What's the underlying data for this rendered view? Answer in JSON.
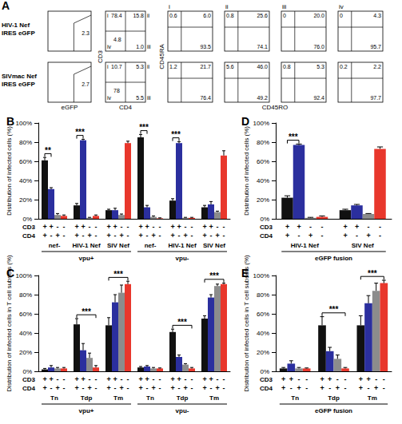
{
  "flow_panel": {
    "title": "A",
    "column_labels": [
      "i",
      "ii",
      "iii",
      "iv"
    ],
    "axis_labels": {
      "gfp_x": "eGFP",
      "cd_y": "CD3",
      "cd_x": "CD4",
      "mem_y": "CD45RA",
      "mem_x": "CD45RO"
    },
    "rows": [
      {
        "label_lines": [
          "HIV-1 Nef",
          "IRES eGFP"
        ],
        "gate": "2.3",
        "cd3_cd4": {
          "i": "78.4",
          "ii": "15.8",
          "iii": "1.0",
          "iv": "4.8"
        },
        "subsets": [
          {
            "tl": "0.6",
            "tr": "6.0",
            "br": "93.5"
          },
          {
            "tl": "0.8",
            "tr": "25.6",
            "br": "74.1"
          },
          {
            "tl": "0",
            "tr": "20.0",
            "br": "76.0"
          },
          {
            "tl": "0",
            "tr": "4.3",
            "br": "95.7"
          }
        ]
      },
      {
        "label_lines": [
          "SIVmac Nef",
          "IRES eGFP"
        ],
        "gate": "2.7",
        "cd3_cd4": {
          "i": "10.7",
          "ii": "5.3",
          "iii": "5.5",
          "iv": "78"
        },
        "subsets": [
          {
            "tl": "1.2",
            "tr": "21.7",
            "br": "76.4"
          },
          {
            "tl": "5.6",
            "tr": "46.0",
            "br": "49.2"
          },
          {
            "tl": "0.8",
            "tr": "5.3",
            "br": "92.4"
          },
          {
            "tl": "0.2",
            "tr": "2.2",
            "br": "97.7"
          }
        ]
      }
    ]
  },
  "chart_data": [
    {
      "type": "bar",
      "title": "B",
      "ylabel": "Distribution of infected cells (%)",
      "ylim": [
        0,
        100
      ],
      "yticks": [
        {
          "value": 0,
          "label": "0%"
        },
        {
          "value": 20,
          "label": "20%"
        },
        {
          "value": 40,
          "label": "40%"
        },
        {
          "value": 60,
          "label": "60%"
        },
        {
          "value": 80,
          "label": "80%"
        },
        {
          "value": 100,
          "label": "100%"
        }
      ],
      "grid": false,
      "categories": [
        "nef-",
        "HIV-1 Nef",
        "SIV Nef",
        "nef-",
        "HIV-1 Nef",
        "SIV Nef"
      ],
      "supergroups": [
        {
          "label": "vpu+",
          "from": 0,
          "to": 2
        },
        {
          "label": "vpu-",
          "from": 3,
          "to": 5
        }
      ],
      "bar_rows": [
        {
          "label": "CD3",
          "signs": [
            "+",
            "+",
            "-",
            "-"
          ]
        },
        {
          "label": "CD4",
          "signs": [
            "+",
            "-",
            "+",
            "-"
          ]
        }
      ],
      "series": [
        {
          "color": "#111111",
          "values": [
            61,
            14,
            9,
            85,
            19,
            12
          ],
          "errors": [
            3,
            2,
            1,
            3,
            2,
            2
          ]
        },
        {
          "color": "#2b2f9e",
          "values": [
            31,
            82,
            9,
            12,
            79,
            15
          ],
          "errors": [
            1.5,
            1,
            2,
            2,
            1.5,
            3
          ]
        },
        {
          "color": "#8c8c8c",
          "values": [
            4,
            1,
            4,
            2,
            1,
            7
          ],
          "errors": [
            1.5,
            0.5,
            1,
            1,
            0.5,
            1
          ]
        },
        {
          "color": "#e8372c",
          "values": [
            3,
            3,
            79,
            0.5,
            1,
            66
          ],
          "errors": [
            1,
            1,
            2,
            0.5,
            0.5,
            5
          ]
        }
      ],
      "significance": [
        {
          "category": 0,
          "from": 0,
          "to": 1,
          "label": "**"
        },
        {
          "category": 1,
          "from": 0,
          "to": 1,
          "label": "***"
        },
        {
          "category": 3,
          "from": 0,
          "to": 1,
          "label": "***"
        },
        {
          "category": 4,
          "from": 0,
          "to": 1,
          "label": "***"
        }
      ]
    },
    {
      "type": "bar",
      "title": "C",
      "ylabel": "Distribution of infected cells in T cell subsets (%)",
      "ylim": [
        0,
        100
      ],
      "yticks": [
        {
          "value": 0,
          "label": "0%"
        },
        {
          "value": 20,
          "label": "20%"
        },
        {
          "value": 40,
          "label": "40%"
        },
        {
          "value": 60,
          "label": "60%"
        },
        {
          "value": 80,
          "label": "80%"
        },
        {
          "value": 100,
          "label": "100%"
        }
      ],
      "grid": false,
      "categories": [
        "Tn",
        "Tdp",
        "Tm",
        "Tn",
        "Tdp",
        "Tm"
      ],
      "supergroups": [
        {
          "label": "vpu+",
          "from": 0,
          "to": 2
        },
        {
          "label": "vpu-",
          "from": 3,
          "to": 5
        }
      ],
      "bar_rows": [
        {
          "label": "CD3",
          "signs": [
            "+",
            "+",
            "-",
            "-"
          ]
        },
        {
          "label": "CD4",
          "signs": [
            "+",
            "-",
            "+",
            "-"
          ]
        }
      ],
      "series": [
        {
          "color": "#111111",
          "values": [
            2,
            49,
            48,
            4,
            41,
            55
          ],
          "errors": [
            1,
            6,
            8,
            1,
            3,
            3
          ]
        },
        {
          "color": "#2b2f9e",
          "values": [
            4,
            22,
            72,
            5,
            15,
            77
          ],
          "errors": [
            2,
            7,
            8,
            1,
            2,
            3
          ]
        },
        {
          "color": "#8c8c8c",
          "values": [
            3,
            14,
            82,
            3,
            7,
            89
          ],
          "errors": [
            1,
            5,
            8,
            1,
            1,
            2
          ]
        },
        {
          "color": "#e8372c",
          "values": [
            3,
            4,
            91,
            3,
            3,
            91
          ],
          "errors": [
            1,
            2,
            3,
            0.5,
            1,
            1
          ]
        }
      ],
      "significance": [
        {
          "category": 1,
          "from": 0,
          "to": 3,
          "label": "***"
        },
        {
          "category": 2,
          "from": 0,
          "to": 3,
          "label": "***"
        },
        {
          "category": 4,
          "from": 0,
          "to": 3,
          "label": "***"
        },
        {
          "category": 5,
          "from": 0,
          "to": 3,
          "label": "***"
        }
      ]
    },
    {
      "type": "bar",
      "title": "D",
      "ylabel": "Distribution of infected cells (%)",
      "ylim": [
        0,
        100
      ],
      "yticks": [
        {
          "value": 0,
          "label": "0%"
        },
        {
          "value": 20,
          "label": "20%"
        },
        {
          "value": 40,
          "label": "40%"
        },
        {
          "value": 60,
          "label": "60%"
        },
        {
          "value": 80,
          "label": "80%"
        },
        {
          "value": 100,
          "label": "100%"
        }
      ],
      "grid": false,
      "categories": [
        "HIV-1 Nef",
        "SIV Nef"
      ],
      "supergroups": [
        {
          "label": "eGFP fusion",
          "from": 0,
          "to": 1
        }
      ],
      "bar_rows": [
        {
          "label": "CD3",
          "signs": [
            "+",
            "+",
            "-",
            "-"
          ]
        },
        {
          "label": "CD4",
          "signs": [
            "+",
            "-",
            "+",
            "-"
          ]
        }
      ],
      "series": [
        {
          "color": "#111111",
          "values": [
            22,
            9
          ],
          "errors": [
            2,
            1
          ]
        },
        {
          "color": "#2b2f9e",
          "values": [
            77,
            14
          ],
          "errors": [
            1,
            1
          ]
        },
        {
          "color": "#8c8c8c",
          "values": [
            1,
            5
          ],
          "errors": [
            0.5,
            0.5
          ]
        },
        {
          "color": "#e8372c",
          "values": [
            2,
            73
          ],
          "errors": [
            1,
            2
          ]
        }
      ],
      "significance": [
        {
          "category": 0,
          "from": 0,
          "to": 1,
          "label": "***"
        }
      ]
    },
    {
      "type": "bar",
      "title": "E",
      "ylabel": "Distribution of infected cells in T cell subsets (%)",
      "ylim": [
        0,
        100
      ],
      "yticks": [
        {
          "value": 0,
          "label": "0%"
        },
        {
          "value": 20,
          "label": "20%"
        },
        {
          "value": 40,
          "label": "40%"
        },
        {
          "value": 60,
          "label": "60%"
        },
        {
          "value": 80,
          "label": "80%"
        },
        {
          "value": 100,
          "label": "100%"
        }
      ],
      "grid": false,
      "categories": [
        "Tn",
        "Tdp",
        "Tm"
      ],
      "supergroups": [
        {
          "label": "eGFP fusion",
          "from": 0,
          "to": 2
        }
      ],
      "bar_rows": [
        {
          "label": "CD3",
          "signs": [
            "+",
            "+",
            "-",
            "-"
          ]
        },
        {
          "label": "CD4",
          "signs": [
            "+",
            "-",
            "+",
            "-"
          ]
        }
      ],
      "series": [
        {
          "color": "#111111",
          "values": [
            3,
            48,
            48
          ],
          "errors": [
            1,
            9,
            10
          ]
        },
        {
          "color": "#2b2f9e",
          "values": [
            8,
            21,
            71
          ],
          "errors": [
            3,
            4,
            8
          ]
        },
        {
          "color": "#8c8c8c",
          "values": [
            3,
            13,
            84
          ],
          "errors": [
            1,
            4,
            8
          ]
        },
        {
          "color": "#e8372c",
          "values": [
            3,
            3,
            92
          ],
          "errors": [
            0.5,
            1,
            3
          ]
        }
      ],
      "significance": [
        {
          "category": 1,
          "from": 0,
          "to": 3,
          "label": "***"
        },
        {
          "category": 2,
          "from": 0,
          "to": 3,
          "label": "***"
        }
      ]
    }
  ]
}
